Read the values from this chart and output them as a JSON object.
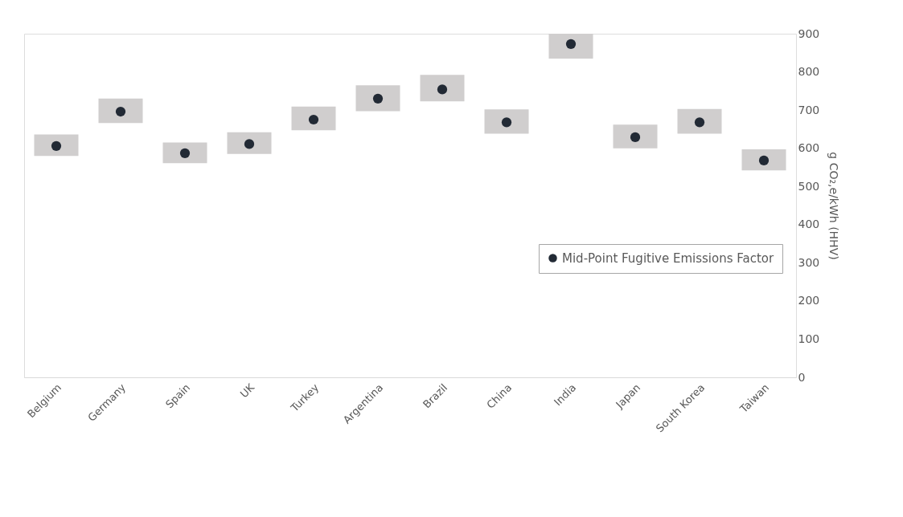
{
  "chart_data": {
    "type": "bar",
    "categories": [
      "Belgium",
      "Germany",
      "Spain",
      "UK",
      "Turkey",
      "Argentina",
      "Brazil",
      "China",
      "India",
      "Japan",
      "South Korea",
      "Taiwan"
    ],
    "ylabel": "g CO₂,e/kWh (HHV)",
    "ylim": [
      0,
      900
    ],
    "yticks": [
      0,
      100,
      200,
      300,
      400,
      500,
      600,
      700,
      800,
      900
    ],
    "grid": false,
    "legend": "bottom right",
    "series": [
      {
        "color": "#d0cece",
        "base": [
          580,
          666,
          561,
          585,
          647,
          697,
          723,
          638,
          835,
          600,
          638,
          542
        ],
        "values": [
          56,
          64,
          54,
          57,
          62,
          68,
          69,
          64,
          65,
          62,
          65,
          55
        ]
      },
      {
        "type": "scatter",
        "name": "Mid-Point Fugitive Emissions Factor",
        "color": "#222a35",
        "marker": "circle",
        "values": [
          606,
          696,
          587,
          611,
          675,
          730,
          754,
          668,
          873,
          629,
          668,
          568
        ]
      }
    ]
  }
}
